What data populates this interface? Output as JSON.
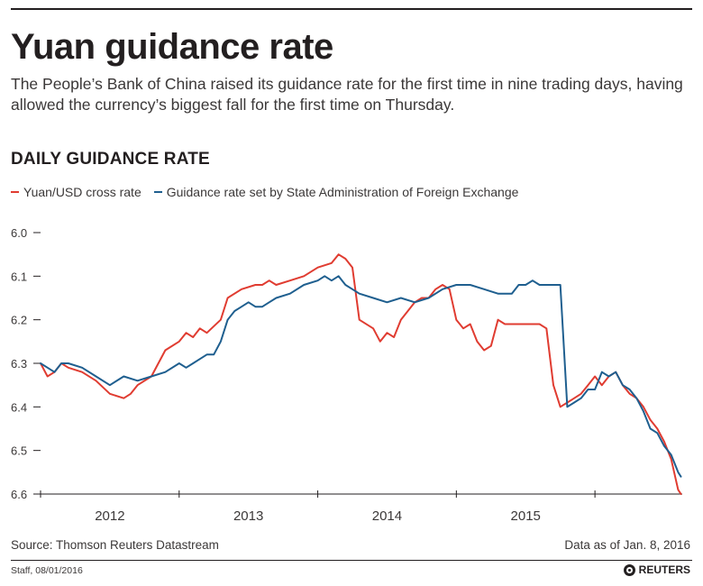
{
  "header": {
    "title": "Yuan guidance rate",
    "subtitle": "The People’s Bank of China raised its guidance rate for the first time in nine trading days, having allowed the currency’s biggest fall for the first time on Thursday.",
    "section_title": "DAILY GUIDANCE RATE"
  },
  "footer": {
    "source": "Source: Thomson Reuters Datastream",
    "as_of": "Data as of Jan. 8, 2016",
    "credit": "Staff, 08/01/2016",
    "logo_text": "REUTERS"
  },
  "colors": {
    "cross_rate": "#e03c31",
    "guidance_rate": "#1f5f8f",
    "axis": "#231f20",
    "gridline": "#c8c8c8"
  },
  "chart_data": {
    "type": "line",
    "title": "DAILY GUIDANCE RATE",
    "xlabel": "",
    "ylabel": "",
    "y_inverted": true,
    "ylim": [
      6.0,
      6.6
    ],
    "xlim": [
      2011.4,
      2016.03
    ],
    "y_ticks": [
      "6.0",
      "6.1",
      "6.2",
      "6.3",
      "6.4",
      "6.5",
      "6.6"
    ],
    "x_tick_labels": [
      "2012",
      "2013",
      "2014",
      "2015"
    ],
    "x_tick_label_positions": [
      2011.9,
      2012.9,
      2013.9,
      2014.9
    ],
    "x_tick_marks": [
      2011.4,
      2012.4,
      2013.4,
      2014.4,
      2015.4
    ],
    "grid": true,
    "legend": "top-left",
    "series": [
      {
        "name": "Yuan/USD cross rate",
        "color": "#e03c31",
        "x": [
          2011.4,
          2011.45,
          2011.5,
          2011.55,
          2011.6,
          2011.7,
          2011.8,
          2011.9,
          2012.0,
          2012.05,
          2012.1,
          2012.2,
          2012.3,
          2012.4,
          2012.45,
          2012.5,
          2012.55,
          2012.6,
          2012.7,
          2012.75,
          2012.85,
          2012.95,
          2013.0,
          2013.05,
          2013.1,
          2013.2,
          2013.3,
          2013.4,
          2013.5,
          2013.55,
          2013.6,
          2013.65,
          2013.7,
          2013.8,
          2013.85,
          2013.9,
          2013.95,
          2014.0,
          2014.05,
          2014.1,
          2014.15,
          2014.2,
          2014.25,
          2014.3,
          2014.35,
          2014.4,
          2014.45,
          2014.5,
          2014.55,
          2014.6,
          2014.65,
          2014.7,
          2014.75,
          2014.8,
          2014.85,
          2014.9,
          2014.95,
          2015.0,
          2015.05,
          2015.1,
          2015.15,
          2015.25,
          2015.3,
          2015.35,
          2015.4,
          2015.45,
          2015.5,
          2015.55,
          2015.6,
          2015.65,
          2015.7,
          2015.75,
          2015.8,
          2015.85,
          2015.9,
          2015.95,
          2016.0,
          2016.02
        ],
        "values": [
          6.3,
          6.33,
          6.32,
          6.3,
          6.31,
          6.32,
          6.34,
          6.37,
          6.38,
          6.37,
          6.35,
          6.33,
          6.27,
          6.25,
          6.23,
          6.24,
          6.22,
          6.23,
          6.2,
          6.15,
          6.13,
          6.12,
          6.12,
          6.11,
          6.12,
          6.11,
          6.1,
          6.08,
          6.07,
          6.05,
          6.06,
          6.08,
          6.2,
          6.22,
          6.25,
          6.23,
          6.24,
          6.2,
          6.18,
          6.16,
          6.15,
          6.15,
          6.13,
          6.12,
          6.13,
          6.2,
          6.22,
          6.21,
          6.25,
          6.27,
          6.26,
          6.2,
          6.21,
          6.21,
          6.21,
          6.21,
          6.21,
          6.21,
          6.22,
          6.35,
          6.4,
          6.38,
          6.37,
          6.35,
          6.33,
          6.35,
          6.33,
          6.32,
          6.35,
          6.37,
          6.38,
          6.4,
          6.43,
          6.45,
          6.48,
          6.52,
          6.59,
          6.6
        ]
      },
      {
        "name": "Guidance rate set by State Administration of Foreign Exchange",
        "color": "#1f5f8f",
        "x": [
          2011.4,
          2011.45,
          2011.5,
          2011.55,
          2011.6,
          2011.7,
          2011.8,
          2011.9,
          2012.0,
          2012.1,
          2012.2,
          2012.3,
          2012.4,
          2012.45,
          2012.5,
          2012.55,
          2012.6,
          2012.65,
          2012.7,
          2012.75,
          2012.8,
          2012.85,
          2012.9,
          2012.95,
          2013.0,
          2013.05,
          2013.1,
          2013.2,
          2013.3,
          2013.4,
          2013.45,
          2013.5,
          2013.55,
          2013.6,
          2013.65,
          2013.7,
          2013.8,
          2013.9,
          2014.0,
          2014.1,
          2014.2,
          2014.3,
          2014.4,
          2014.5,
          2014.6,
          2014.7,
          2014.8,
          2014.85,
          2014.9,
          2014.95,
          2015.0,
          2015.05,
          2015.1,
          2015.15,
          2015.2,
          2015.25,
          2015.3,
          2015.35,
          2015.4,
          2015.45,
          2015.5,
          2015.55,
          2015.6,
          2015.65,
          2015.7,
          2015.75,
          2015.8,
          2015.85,
          2015.9,
          2015.95,
          2016.0,
          2016.02
        ],
        "values": [
          6.3,
          6.31,
          6.32,
          6.3,
          6.3,
          6.31,
          6.33,
          6.35,
          6.33,
          6.34,
          6.33,
          6.32,
          6.3,
          6.31,
          6.3,
          6.29,
          6.28,
          6.28,
          6.25,
          6.2,
          6.18,
          6.17,
          6.16,
          6.17,
          6.17,
          6.16,
          6.15,
          6.14,
          6.12,
          6.11,
          6.1,
          6.11,
          6.1,
          6.12,
          6.13,
          6.14,
          6.15,
          6.16,
          6.15,
          6.16,
          6.15,
          6.13,
          6.12,
          6.12,
          6.13,
          6.14,
          6.14,
          6.12,
          6.12,
          6.11,
          6.12,
          6.12,
          6.12,
          6.12,
          6.4,
          6.39,
          6.38,
          6.36,
          6.36,
          6.32,
          6.33,
          6.32,
          6.35,
          6.36,
          6.38,
          6.41,
          6.45,
          6.46,
          6.49,
          6.51,
          6.55,
          6.56
        ]
      }
    ]
  }
}
